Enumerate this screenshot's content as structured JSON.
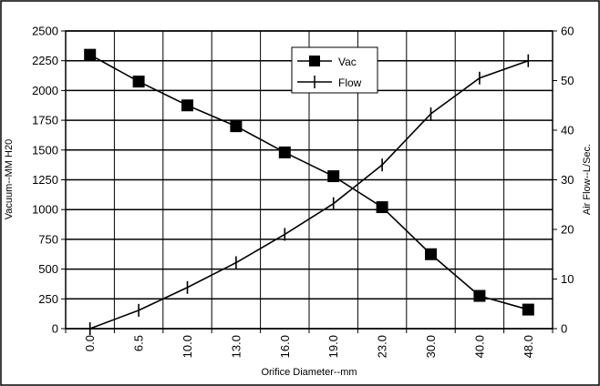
{
  "chart_data": {
    "type": "line",
    "categories": [
      "0.0",
      "6.5",
      "10.0",
      "13.0",
      "16.0",
      "19.0",
      "23.0",
      "30.0",
      "40.0",
      "48.0"
    ],
    "xlabel": "Orifice Diameter--mm",
    "ylabel": "Vacuum--MM H20",
    "y2label": "Air Flow--L/Sec.",
    "ylim": [
      0,
      2500
    ],
    "y2lim": [
      0,
      60
    ],
    "yticks": [
      "0",
      "250",
      "500",
      "750",
      "1000",
      "1250",
      "1500",
      "1750",
      "2000",
      "2250",
      "2500"
    ],
    "y2ticks": [
      "0",
      "10",
      "20",
      "30",
      "40",
      "50",
      "60"
    ],
    "grid": true,
    "legend_position": "top-center",
    "series": [
      {
        "name": "Vac",
        "axis": "left",
        "marker": "square",
        "color": "#000000",
        "values": [
          2300,
          2075,
          1875,
          1700,
          1480,
          1280,
          1020,
          625,
          275,
          160
        ]
      },
      {
        "name": "Flow",
        "axis": "right",
        "marker": "vertical-tick",
        "color": "#000000",
        "values": [
          0,
          3.7,
          8.3,
          13.3,
          19,
          25.2,
          33,
          43.3,
          50.5,
          54
        ]
      }
    ]
  }
}
